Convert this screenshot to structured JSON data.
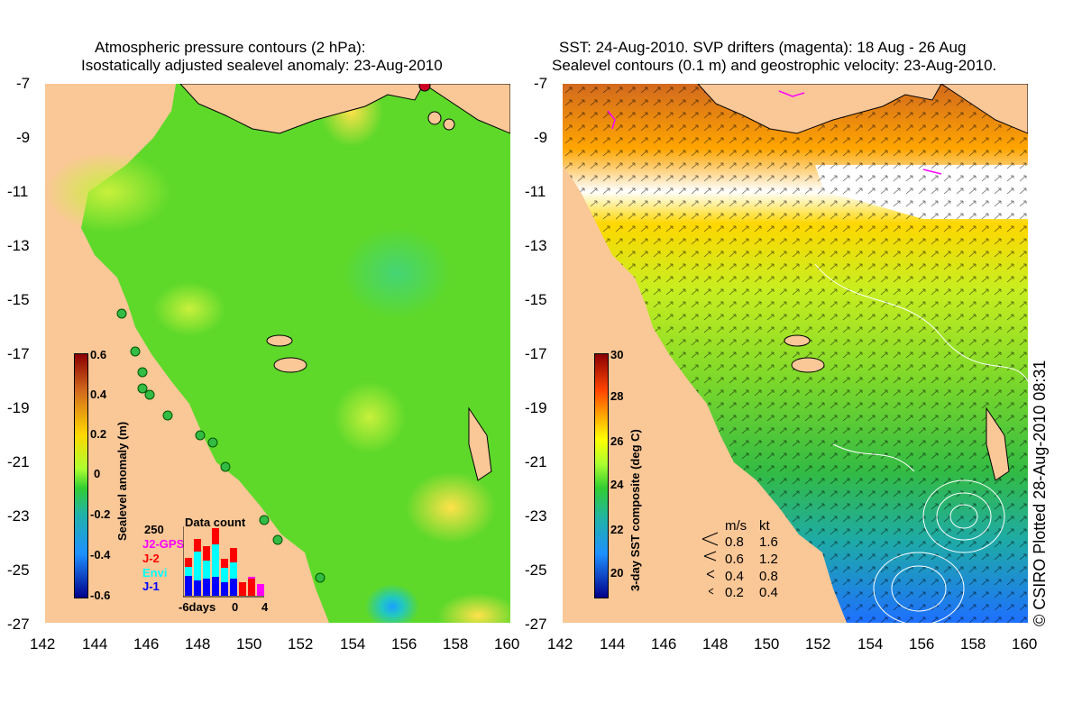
{
  "left_panel": {
    "title_line1": "Atmospheric pressure contours (2 hPa):",
    "title_line2": "Isostatically adjusted sealevel anomaly: 23-Aug-2010",
    "colorbar": {
      "label": "Sealevel anomaly (m)",
      "ticks": [
        "0.6",
        "0.4",
        "0.2",
        "0",
        "-0.2",
        "-0.4",
        "-0.6"
      ],
      "colors": [
        "#8b0000",
        "#d2691e",
        "#ffd700",
        "#adff2f",
        "#32cd32",
        "#20b2aa",
        "#1e90ff",
        "#00008b"
      ]
    },
    "data_count": {
      "title": "Data count",
      "max": "250",
      "legend": [
        {
          "label": "J2-GPS",
          "color": "#ff00ff"
        },
        {
          "label": "J-2",
          "color": "#ff0000"
        },
        {
          "label": "Envi",
          "color": "#00ffff"
        },
        {
          "label": "J-1",
          "color": "#0000ff"
        }
      ],
      "xlabel_left": "-6days",
      "xlabel_mid": "0",
      "xlabel_right": "4"
    }
  },
  "right_panel": {
    "title_line1": "SST: 24-Aug-2010. SVP drifters (magenta): 18 Aug - 26 Aug",
    "title_line2": "Sealevel contours (0.1 m) and geostrophic velocity: 23-Aug-2010.",
    "colorbar": {
      "label": "3-day SST composite (deg C)",
      "ticks": [
        "30",
        "28",
        "26",
        "24",
        "22",
        "20"
      ],
      "colors": [
        "#8b0000",
        "#ff4500",
        "#ffa500",
        "#ffff00",
        "#adff2f",
        "#32cd32",
        "#20b2aa",
        "#1e90ff",
        "#00008b"
      ]
    },
    "velocity_legend": {
      "header_ms": "m/s",
      "header_kt": "kt",
      "rows": [
        {
          "ms": "0.8",
          "kt": "1.6"
        },
        {
          "ms": "0.6",
          "kt": "1.2"
        },
        {
          "ms": "0.4",
          "kt": "0.8"
        },
        {
          "ms": "0.2",
          "kt": "0.4"
        }
      ]
    },
    "credit": "© CSIRO Plotted 28-Aug-2010 08:31"
  },
  "axes": {
    "x_ticks": [
      "142",
      "144",
      "146",
      "148",
      "150",
      "152",
      "154",
      "156",
      "158",
      "160"
    ],
    "y_ticks": [
      "-7",
      "-9",
      "-11",
      "-13",
      "-15",
      "-17",
      "-19",
      "-21",
      "-23",
      "-25",
      "-27"
    ]
  },
  "colors": {
    "land": "#fac797",
    "sea_green": "#66dd22",
    "no_data": "#ffffff"
  }
}
